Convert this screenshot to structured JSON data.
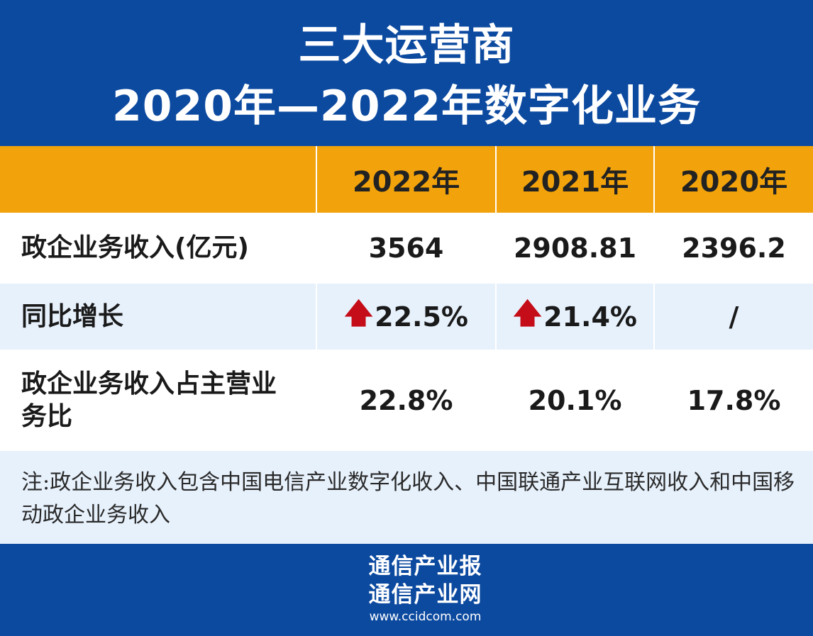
{
  "title": {
    "line1": "三大运营商",
    "line2": "2020年—2022年数字化业务"
  },
  "table": {
    "headers": [
      "",
      "2022年",
      "2021年",
      "2020年"
    ],
    "rows": [
      {
        "label": "政企业务收入(亿元)",
        "values": [
          "3564",
          "2908.81",
          "2396.2"
        ]
      },
      {
        "label": "同比增长",
        "values": [
          "22.5%",
          "21.4%",
          "/"
        ],
        "arrows": [
          "up",
          "up",
          ""
        ]
      },
      {
        "label": "政企业务收入占主营业务比",
        "values": [
          "22.8%",
          "20.1%",
          "17.8%"
        ]
      }
    ]
  },
  "note": "注:政企业务收入包含中国电信产业数字化收入、中国联通产业互联网收入和中国移动政企业务收入",
  "footer": {
    "logo_line1": "通信产业报",
    "logo_line2": "通信产业网",
    "url": "www.ccidcom.com"
  },
  "colors": {
    "header_bg": "#0c4aa0",
    "table_header_bg": "#f2a30b",
    "alt_row_bg": "#e7f1fc",
    "arrow": "#c40d18"
  }
}
